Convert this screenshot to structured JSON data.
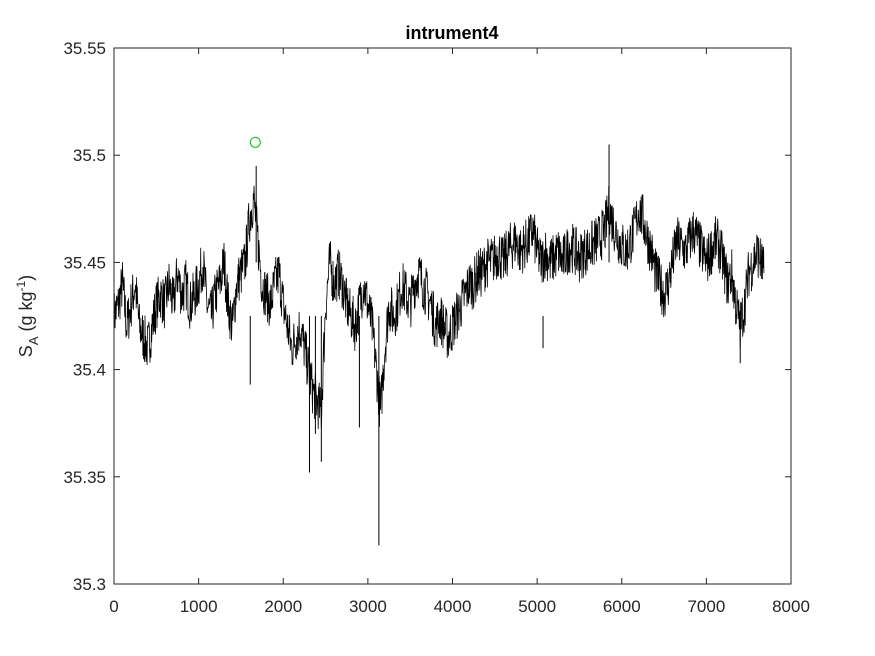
{
  "chart_data": {
    "type": "line",
    "title": "intrument4",
    "xlabel": "",
    "ylabel": {
      "main": "S",
      "subscript": "A",
      "unit_open": " (g kg",
      "unit_superscript": "-1",
      "unit_close": ")"
    },
    "xlim": [
      0,
      8000
    ],
    "ylim": [
      35.3,
      35.55
    ],
    "xticks": [
      0,
      1000,
      2000,
      3000,
      4000,
      5000,
      6000,
      7000,
      8000
    ],
    "yticks": [
      35.3,
      35.35,
      35.4,
      35.45,
      35.5,
      35.55
    ],
    "xtick_labels": [
      "0",
      "1000",
      "2000",
      "3000",
      "4000",
      "5000",
      "6000",
      "7000",
      "8000"
    ],
    "ytick_labels": [
      "35.3",
      "35.35",
      "35.4",
      "35.45",
      "35.5",
      "35.55"
    ],
    "grid": false,
    "legend": "none",
    "line_color": "#000000",
    "marker_color": "#00c000",
    "series": [
      {
        "x": [
          0,
          50,
          100,
          150,
          200,
          250,
          300,
          350,
          400,
          450,
          500,
          550,
          600,
          650,
          700,
          750,
          800,
          850,
          900,
          950,
          1000,
          1050,
          1100,
          1150,
          1200,
          1250,
          1300,
          1350,
          1400,
          1450,
          1500,
          1550,
          1600,
          1650,
          1700,
          1750,
          1800,
          1850,
          1900,
          1950,
          2000,
          2050,
          2100,
          2150,
          2200,
          2250,
          2300,
          2350,
          2400,
          2450,
          2500,
          2550,
          2600,
          2650,
          2700,
          2750,
          2800,
          2850,
          2900,
          2950,
          3000,
          3050,
          3100,
          3150,
          3200,
          3250,
          3300,
          3350,
          3400,
          3450,
          3500,
          3550,
          3600,
          3650,
          3700,
          3750,
          3800,
          3850,
          3900,
          3950,
          4000,
          4050,
          4100,
          4150,
          4200,
          4250,
          4300,
          4350,
          4400,
          4450,
          4500,
          4550,
          4600,
          4650,
          4700,
          4750,
          4800,
          4850,
          4900,
          4950,
          5000,
          5050,
          5100,
          5150,
          5200,
          5250,
          5300,
          5350,
          5400,
          5450,
          5500,
          5550,
          5600,
          5650,
          5700,
          5750,
          5800,
          5850,
          5900,
          5950,
          6000,
          6050,
          6100,
          6150,
          6200,
          6250,
          6300,
          6350,
          6400,
          6450,
          6500,
          6550,
          6600,
          6650,
          6700,
          6750,
          6800,
          6850,
          6900,
          6950,
          7000,
          7050,
          7100,
          7150,
          7200,
          7250,
          7300,
          7350,
          7400,
          7450,
          7500,
          7550,
          7600,
          7650,
          7680
        ],
        "y": [
          35.425,
          35.43,
          35.44,
          35.42,
          35.43,
          35.44,
          35.42,
          35.415,
          35.41,
          35.42,
          35.43,
          35.435,
          35.43,
          35.44,
          35.43,
          35.445,
          35.435,
          35.44,
          35.43,
          35.435,
          35.44,
          35.45,
          35.43,
          35.425,
          35.435,
          35.44,
          35.45,
          35.43,
          35.42,
          35.44,
          35.445,
          35.45,
          35.47,
          35.48,
          35.46,
          35.44,
          35.435,
          35.43,
          35.44,
          35.445,
          35.43,
          35.42,
          35.41,
          35.415,
          35.42,
          35.41,
          35.4,
          35.39,
          35.385,
          35.38,
          35.43,
          35.45,
          35.44,
          35.445,
          35.44,
          35.43,
          35.425,
          35.42,
          35.43,
          35.44,
          35.43,
          35.42,
          35.4,
          35.38,
          35.41,
          35.43,
          35.425,
          35.43,
          35.44,
          35.435,
          35.43,
          35.44,
          35.445,
          35.44,
          35.435,
          35.43,
          35.42,
          35.425,
          35.42,
          35.415,
          35.42,
          35.425,
          35.43,
          35.435,
          35.44,
          35.44,
          35.445,
          35.445,
          35.45,
          35.45,
          35.452,
          35.455,
          35.45,
          35.455,
          35.458,
          35.46,
          35.455,
          35.458,
          35.46,
          35.465,
          35.455,
          35.45,
          35.455,
          35.45,
          35.452,
          35.455,
          35.45,
          35.455,
          35.458,
          35.455,
          35.452,
          35.455,
          35.456,
          35.458,
          35.46,
          35.462,
          35.465,
          35.475,
          35.468,
          35.462,
          35.458,
          35.455,
          35.46,
          35.465,
          35.475,
          35.47,
          35.462,
          35.455,
          35.445,
          35.44,
          35.435,
          35.44,
          35.45,
          35.46,
          35.458,
          35.455,
          35.46,
          35.465,
          35.46,
          35.455,
          35.45,
          35.455,
          35.46,
          35.458,
          35.45,
          35.44,
          35.445,
          35.43,
          35.42,
          35.43,
          35.445,
          35.45,
          35.455,
          35.45,
          35.445
        ]
      }
    ],
    "extreme_points": {
      "x": [
        3130,
        1610,
        2310,
        2450,
        5850,
        1680,
        5070,
        7400,
        2900,
        2380
      ],
      "y": [
        35.318,
        35.393,
        35.352,
        35.357,
        35.505,
        35.495,
        35.41,
        35.403,
        35.373,
        35.37
      ]
    },
    "marker_point": {
      "x": 1670,
      "y": 35.506
    }
  }
}
